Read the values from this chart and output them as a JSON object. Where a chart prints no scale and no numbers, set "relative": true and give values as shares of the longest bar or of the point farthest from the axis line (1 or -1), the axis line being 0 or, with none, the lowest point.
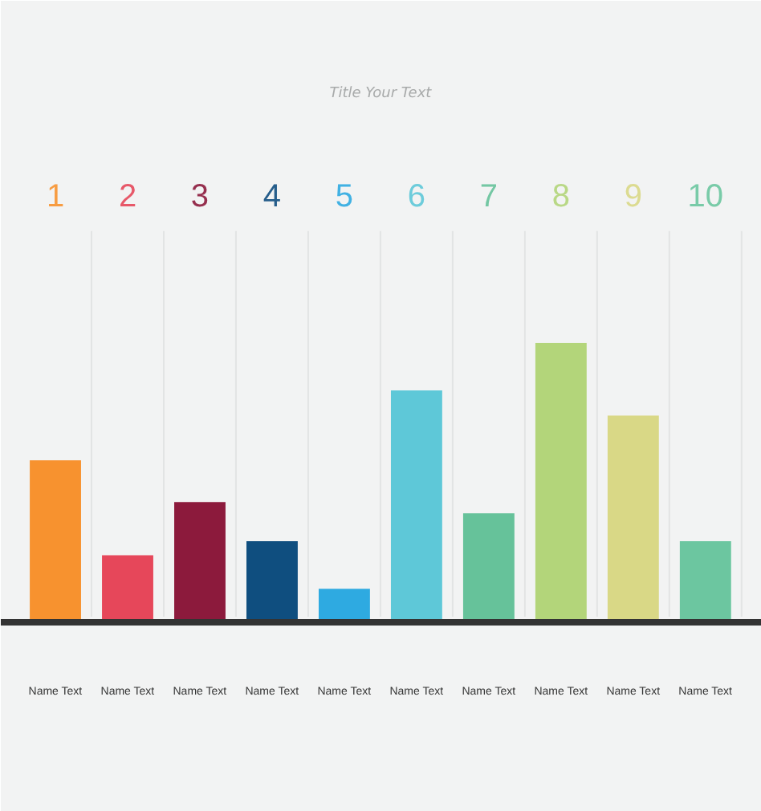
{
  "chart_data": {
    "type": "bar",
    "title": "Title Your Text",
    "relative": true,
    "categories": [
      "1",
      "2",
      "3",
      "4",
      "5",
      "6",
      "7",
      "8",
      "9",
      "10"
    ],
    "values": [
      0.58,
      0.24,
      0.43,
      0.29,
      0.12,
      0.83,
      0.39,
      1.0,
      0.74,
      0.29
    ],
    "colors": [
      "#f7922f",
      "#e6475a",
      "#8c1a3c",
      "#0f4e7f",
      "#2eaae1",
      "#5ec8d8",
      "#66c29a",
      "#b3d57a",
      "#d9d886",
      "#6cc6a0"
    ],
    "annotations": [
      "Name Text",
      "Name Text",
      "Name Text",
      "Name Text",
      "Name Text",
      "Name Text",
      "Name Text",
      "Name Text",
      "Name Text",
      "Name Text"
    ]
  }
}
